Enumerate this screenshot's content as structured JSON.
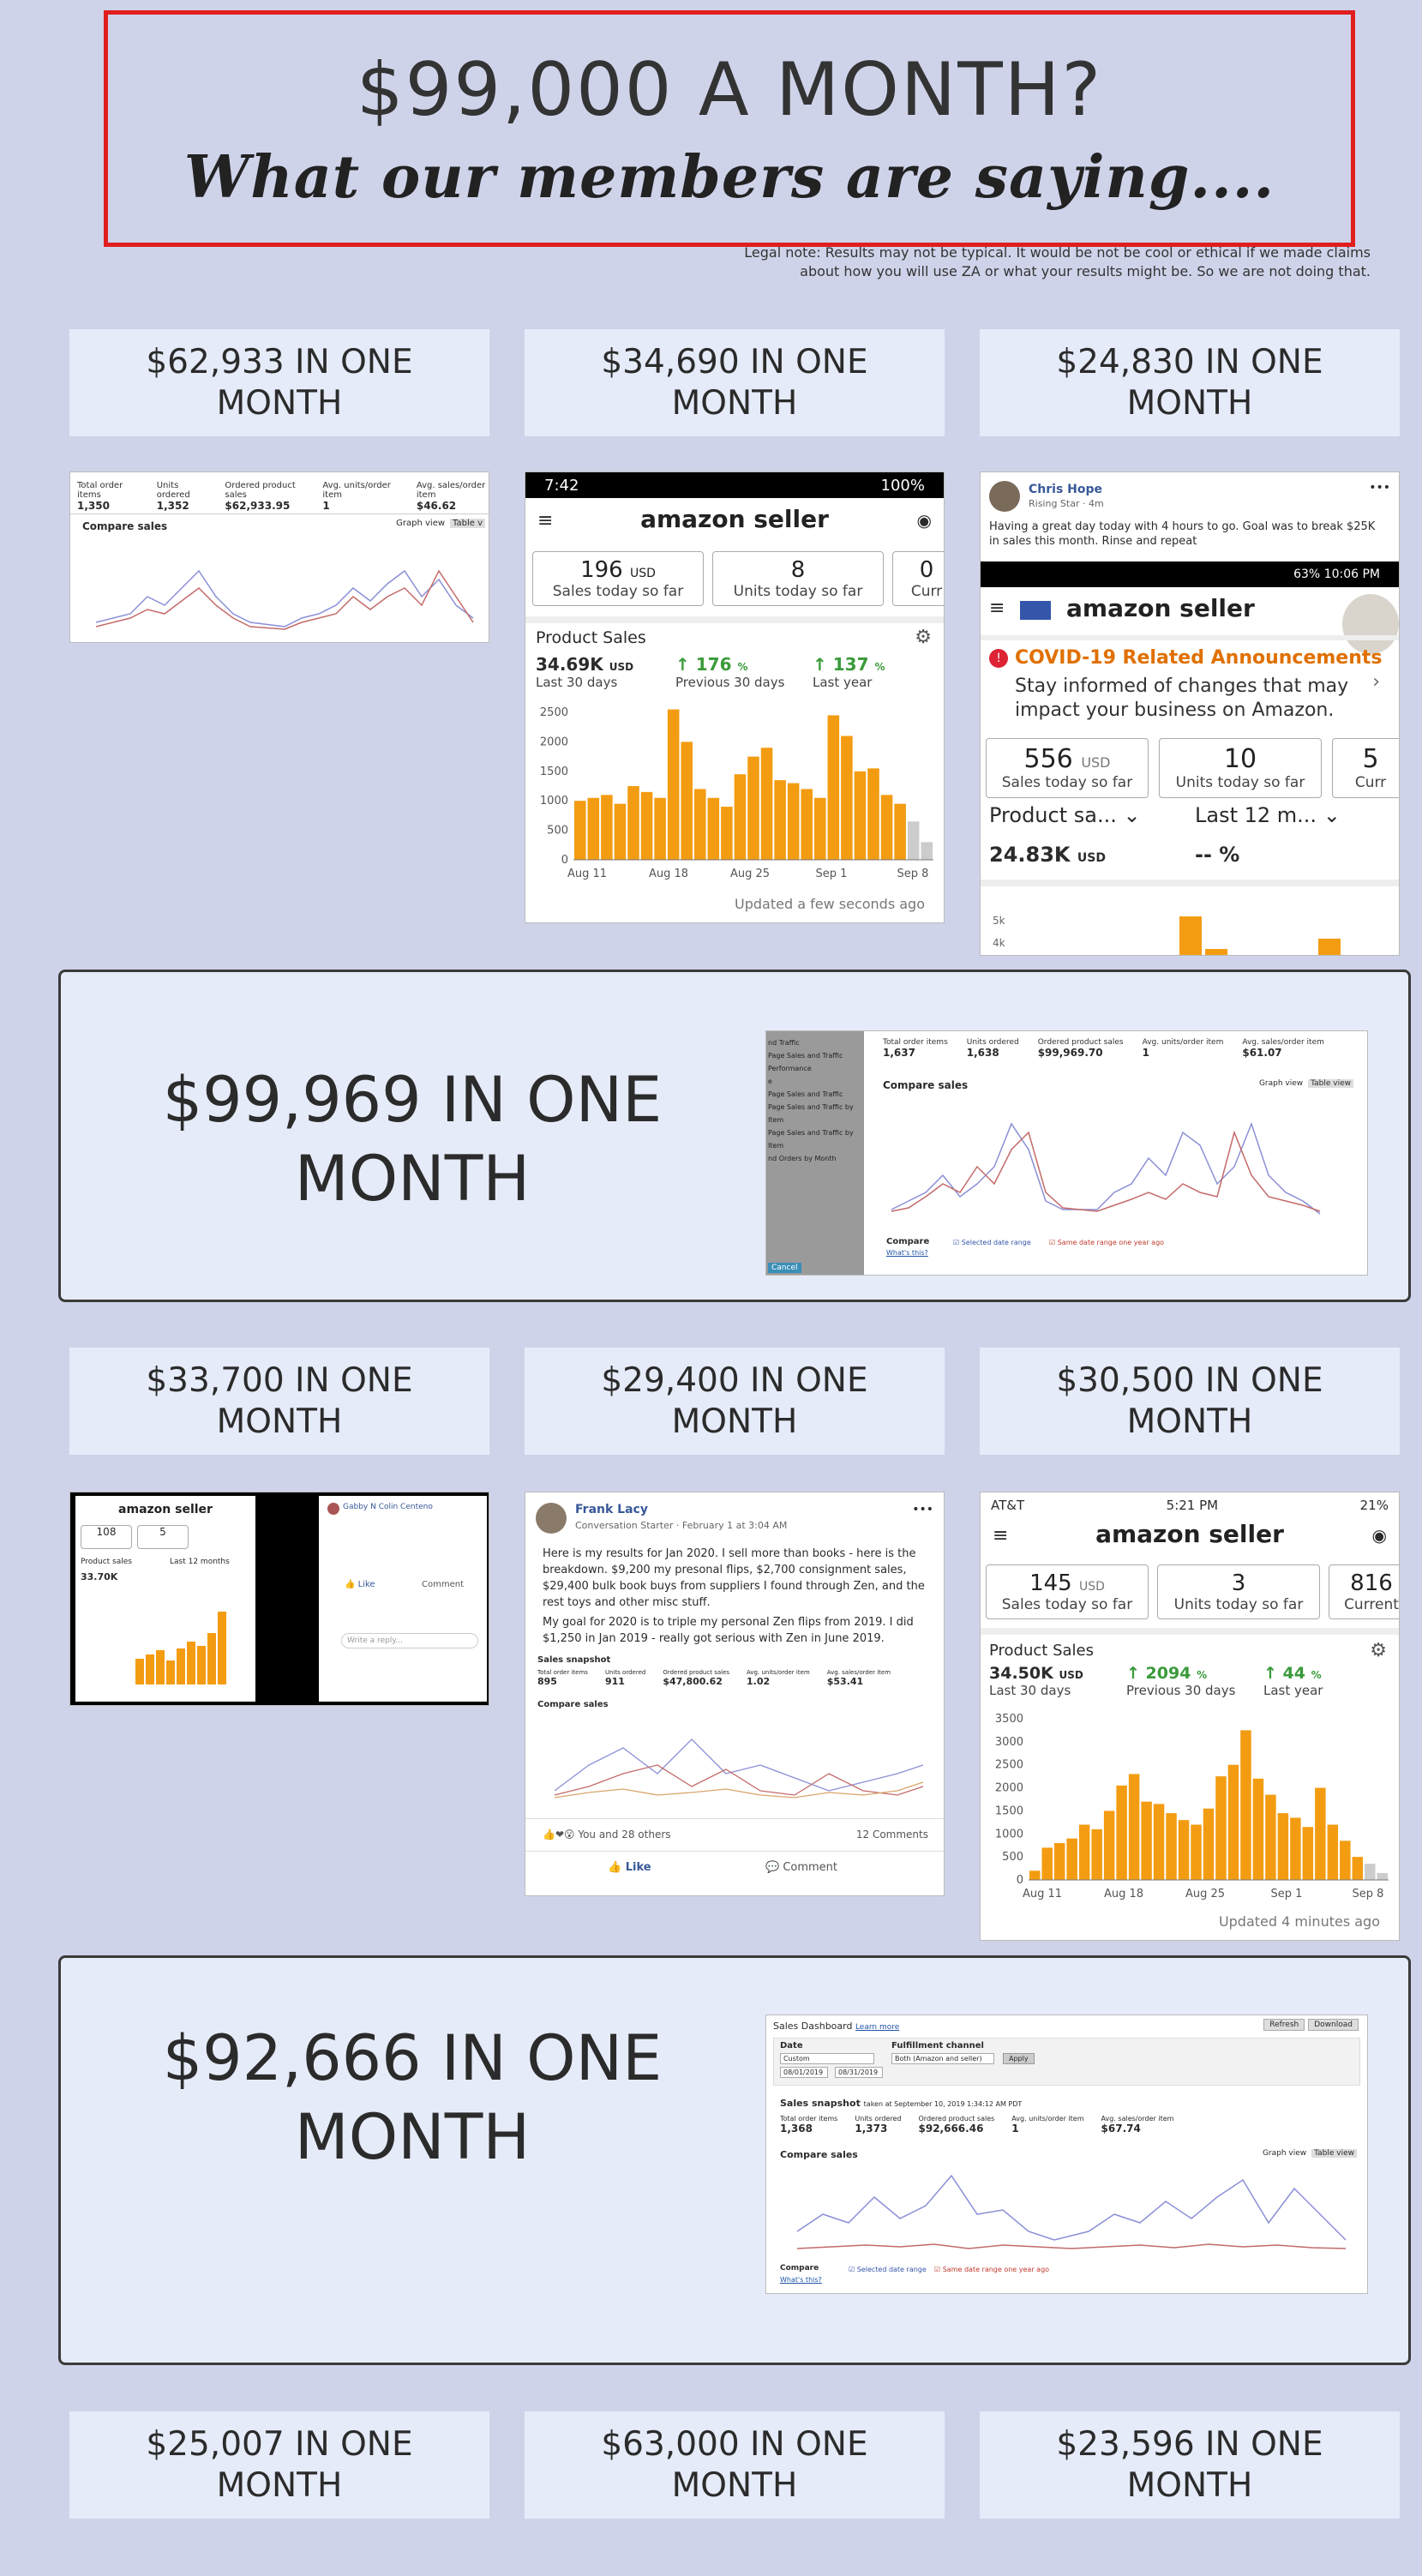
{
  "hero": {
    "line1": "$99,000 A MONTH?",
    "line2": "What our members are saying....",
    "legal": "Legal note: Results may not be typical. It would be not be cool or ethical if we made claims about how you will use ZA or what your results might be. So we are not doing that."
  },
  "colors": {
    "background": "#cfd3ea",
    "label_bg": "#e6ebf9",
    "hero_border": "#e01e1e",
    "bar_orange": "#f39c12"
  },
  "labels": {
    "r1c1": "$62,933 IN ONE MONTH",
    "r1c2": "$34,690 IN ONE MONTH",
    "r1c3": "$24,830 IN ONE MONTH",
    "feature1": "$99,969 IN ONE MONTH",
    "r2c1": "$33,700 IN ONE MONTH",
    "r2c2": "$29,400 IN ONE MONTH",
    "r2c3": "$30,500 IN ONE MONTH",
    "feature2": "$92,666 IN ONE MONTH",
    "r3c1": "$25,007 IN ONE MONTH",
    "r3c2": "$63,000 IN ONE MONTH",
    "r3c3": "$23,596 IN ONE MONTH"
  },
  "shot1": {
    "stats": [
      {
        "label": "Total order items",
        "value": "1,350"
      },
      {
        "label": "Units ordered",
        "value": "1,352"
      },
      {
        "label": "Ordered product sales",
        "value": "$62,933.95"
      },
      {
        "label": "Avg. units/order item",
        "value": "1"
      },
      {
        "label": "Avg. sales/order item",
        "value": "$46.62"
      }
    ],
    "compare": "Compare sales",
    "graph_view": "Graph view",
    "table_view": "Table v"
  },
  "shot2": {
    "time": "7:42",
    "battery": "100%",
    "logo": "amazon seller",
    "tiles": [
      {
        "n": "196",
        "unit": "USD",
        "l": "Sales today so far"
      },
      {
        "n": "8",
        "unit": "",
        "l": "Units today so far"
      },
      {
        "n": "0",
        "unit": "",
        "l": "Curr"
      }
    ],
    "product_sales": "Product Sales",
    "kpis": [
      {
        "v": "34.69K",
        "unit": "USD",
        "l": "Last 30 days"
      },
      {
        "v": "176",
        "unit": "%",
        "l": "Previous 30 days"
      },
      {
        "v": "137",
        "unit": "%",
        "l": "Last year"
      }
    ],
    "yticks": [
      "2500",
      "2000",
      "1500",
      "1000",
      "500",
      "0"
    ],
    "xticks": [
      "Aug 11",
      "Aug 18",
      "Aug 25",
      "Sep 1",
      "Sep 8"
    ],
    "bars": [
      1000,
      1050,
      1100,
      950,
      1250,
      1150,
      1050,
      2550,
      2000,
      1200,
      1050,
      900,
      1450,
      1750,
      1900,
      1350,
      1300,
      1200,
      1050,
      2450,
      2100,
      1500,
      1550,
      1100,
      950,
      650,
      300
    ],
    "updated": "Updated a few seconds ago"
  },
  "shot3": {
    "name": "Chris Hope",
    "badge": "Rising Star",
    "age": "4m",
    "post": "Having a great day today with 4 hours to go. Goal was to break $25K in sales this month. Rinse and repeat",
    "status": "63% 10:06 PM",
    "logo": "amazon seller",
    "alert_title": "COVID-19 Related Announcements",
    "alert_body": "Stay informed of changes that may impact your business on Amazon.",
    "tiles": [
      {
        "n": "556",
        "unit": "USD",
        "l": "Sales today so far"
      },
      {
        "n": "10",
        "unit": "",
        "l": "Units today so far"
      },
      {
        "n": "5",
        "unit": "",
        "l": "Curr"
      }
    ],
    "product": "Product sa...",
    "period": "Last 12 m...",
    "kpi": "24.83K",
    "kpi_unit": "USD",
    "kpi2": "-- %",
    "y5": "5k",
    "y4": "4k"
  },
  "shot4": {
    "side": [
      "nd Traffic",
      "Page Sales and Traffic",
      "Performance",
      "e",
      "Page Sales and Traffic",
      "Page Sales and Traffic by Item",
      "Page Sales and Traffic by Item",
      "nd Orders by Month"
    ],
    "stats": [
      {
        "label": "Total order items",
        "value": "1,637"
      },
      {
        "label": "Units ordered",
        "value": "1,638"
      },
      {
        "label": "Ordered product sales",
        "value": "$99,969.70"
      },
      {
        "label": "Avg. units/order item",
        "value": "1"
      },
      {
        "label": "Avg. sales/order item",
        "value": "$61.07"
      }
    ],
    "compare": "Compare sales",
    "graph_view": "Graph view",
    "table_view": "Table view",
    "compare2": "Compare",
    "whats": "What's this?",
    "sel": "Selected date range",
    "same": "Same date range one year ago",
    "cancel": "Cancel"
  },
  "shot5": {
    "logo": "amazon seller",
    "n1": "108",
    "n2": "5",
    "kpi": "33.70K",
    "ps": "Product sales",
    "l12": "Last 12 months",
    "commenter": "Gabby N Colin Centeno",
    "like": "Like",
    "comment": "Comment",
    "reply": "Write a reply..."
  },
  "shot6": {
    "name": "Frank Lacy",
    "badge": "Conversation Starter",
    "date": "February 1 at 3:04 AM",
    "p1": "Here is my results for Jan 2020. I sell more than books - here is the breakdown. $9,200 my presonal flips, $2,700 consignment sales, $29,400 bulk book buys from suppliers I found through Zen, and the rest toys and other misc stuff.",
    "p2": "My goal for 2020 is to triple my personal Zen flips from 2019. I did $1,250 in Jan 2019 - really got serious with Zen in June 2019.",
    "snapshot": "Sales snapshot",
    "stats": [
      {
        "label": "Total order items",
        "value": "895"
      },
      {
        "label": "Units ordered",
        "value": "911"
      },
      {
        "label": "Ordered product sales",
        "value": "$47,800.62"
      },
      {
        "label": "Avg. units/order item",
        "value": "1.02"
      },
      {
        "label": "Avg. sales/order item",
        "value": "$53.41"
      }
    ],
    "compare": "Compare sales",
    "reactions": "You and 28 others",
    "comments": "12 Comments",
    "like": "Like",
    "comment": "Comment"
  },
  "shot7": {
    "carrier": "AT&T",
    "time": "5:21 PM",
    "battery": "21%",
    "logo": "amazon seller",
    "tiles": [
      {
        "n": "145",
        "unit": "USD",
        "l": "Sales today so far"
      },
      {
        "n": "3",
        "unit": "",
        "l": "Units today so far"
      },
      {
        "n": "816",
        "unit": "",
        "l": "Current"
      }
    ],
    "product_sales": "Product Sales",
    "kpis": [
      {
        "v": "34.50K",
        "unit": "USD",
        "l": "Last 30 days"
      },
      {
        "v": "2094",
        "unit": "%",
        "l": "Previous 30 days"
      },
      {
        "v": "44",
        "unit": "%",
        "l": "Last year"
      }
    ],
    "yticks": [
      "3500",
      "3000",
      "2500",
      "2000",
      "1500",
      "1000",
      "500",
      "0"
    ],
    "xticks": [
      "Aug 11",
      "Aug 18",
      "Aug 25",
      "Sep 1",
      "Sep 8"
    ],
    "bars": [
      200,
      700,
      800,
      900,
      1200,
      1100,
      1500,
      2050,
      2300,
      1700,
      1650,
      1450,
      1300,
      1200,
      1550,
      2250,
      2500,
      3250,
      2200,
      1850,
      1450,
      1350,
      1150,
      2000,
      1200,
      850,
      500,
      350,
      150
    ],
    "updated": "Updated 4 minutes ago"
  },
  "shot8": {
    "title": "Sales Dashboard",
    "learn": "Learn more",
    "refresh": "Refresh",
    "download": "Download",
    "date": "Date",
    "custom": "Custom",
    "d1": "08/01/2019",
    "d2": "08/31/2019",
    "channel": "Fulfillment channel",
    "channel_val": "Both (Amazon and seller)",
    "apply": "Apply",
    "snapshot": "Sales snapshot",
    "snapshot_sub": "taken at September 10, 2019 1:34:12 AM PDT",
    "stats": [
      {
        "label": "Total order items",
        "value": "1,368"
      },
      {
        "label": "Units ordered",
        "value": "1,373"
      },
      {
        "label": "Ordered product sales",
        "value": "$92,666.46"
      },
      {
        "label": "Avg. units/order item",
        "value": "1"
      },
      {
        "label": "Avg. sales/order item",
        "value": "$67.74"
      }
    ],
    "compare": "Compare sales",
    "graph_view": "Graph view",
    "table_view": "Table view",
    "compare2": "Compare",
    "whats": "What's this?",
    "sel": "Selected date range",
    "same": "Same date range one year ago"
  }
}
